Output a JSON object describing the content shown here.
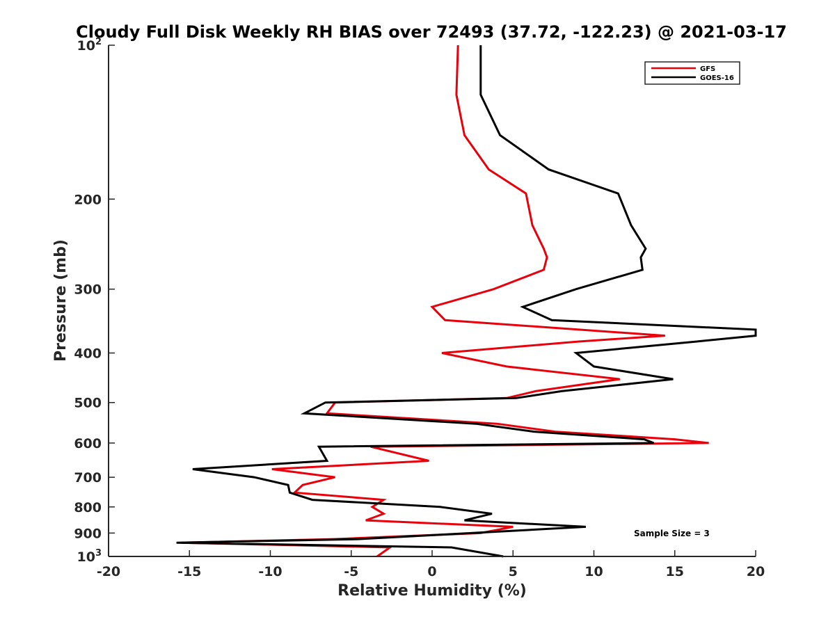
{
  "chart_data": {
    "type": "line",
    "title": "Cloudy Full Disk Weekly RH BIAS over 72493 (37.72, -122.23) @ 2021-03-17",
    "xlabel": "Relative Humidity (%)",
    "ylabel": "Pressure (mb)",
    "xlim": [
      -20,
      20
    ],
    "ylim": [
      100,
      1000
    ],
    "yscale": "log",
    "y_inverted": true,
    "grid": false,
    "legend_position": "top-right",
    "x_ticks": [
      "-20",
      "-15",
      "-10",
      "-5",
      "0",
      "5",
      "10",
      "15",
      "20"
    ],
    "y_ticks": [
      {
        "value": 100,
        "label": "10",
        "sup": "2"
      },
      {
        "value": 200,
        "label": "200"
      },
      {
        "value": 300,
        "label": "300"
      },
      {
        "value": 400,
        "label": "400"
      },
      {
        "value": 500,
        "label": "500"
      },
      {
        "value": 600,
        "label": "600"
      },
      {
        "value": 700,
        "label": "700"
      },
      {
        "value": 800,
        "label": "800"
      },
      {
        "value": 900,
        "label": "900"
      },
      {
        "value": 1000,
        "label": "10",
        "sup": "3"
      }
    ],
    "annotation": "Sample Size = 3",
    "series": [
      {
        "name": "GFS",
        "color": "#e8000b",
        "points": [
          [
            1.6,
            100
          ],
          [
            1.5,
            125
          ],
          [
            2.0,
            150
          ],
          [
            3.5,
            175
          ],
          [
            5.8,
            195
          ],
          [
            6.2,
            225
          ],
          [
            6.9,
            250
          ],
          [
            7.1,
            260
          ],
          [
            6.9,
            275
          ],
          [
            3.8,
            300
          ],
          [
            0.0,
            325
          ],
          [
            0.8,
            345
          ],
          [
            14.4,
            370
          ],
          [
            9.0,
            380
          ],
          [
            0.6,
            400
          ],
          [
            4.6,
            425
          ],
          [
            11.6,
            450
          ],
          [
            6.4,
            475
          ],
          [
            4.6,
            490
          ],
          [
            -6.0,
            500
          ],
          [
            -6.5,
            525
          ],
          [
            4.0,
            550
          ],
          [
            7.6,
            570
          ],
          [
            15.0,
            590
          ],
          [
            17.1,
            600
          ],
          [
            -3.8,
            610
          ],
          [
            -0.2,
            650
          ],
          [
            -9.9,
            675
          ],
          [
            -6.0,
            700
          ],
          [
            -8.0,
            725
          ],
          [
            -8.5,
            750
          ],
          [
            -3.0,
            775
          ],
          [
            -3.7,
            800
          ],
          [
            -3.0,
            825
          ],
          [
            -4.1,
            850
          ],
          [
            5.0,
            875
          ],
          [
            3.0,
            900
          ],
          [
            -6.1,
            925
          ],
          [
            -15.5,
            940
          ],
          [
            -2.6,
            960
          ],
          [
            -3.4,
            1000
          ]
        ]
      },
      {
        "name": "GOES-16",
        "color": "#000000",
        "points": [
          [
            3.0,
            100
          ],
          [
            3.0,
            125
          ],
          [
            4.2,
            150
          ],
          [
            7.2,
            175
          ],
          [
            11.5,
            195
          ],
          [
            12.3,
            225
          ],
          [
            13.2,
            250
          ],
          [
            12.9,
            260
          ],
          [
            13.0,
            275
          ],
          [
            8.9,
            300
          ],
          [
            5.6,
            325
          ],
          [
            7.4,
            345
          ],
          [
            20.0,
            360
          ],
          [
            20.0,
            370
          ],
          [
            16.3,
            380
          ],
          [
            8.9,
            400
          ],
          [
            10.0,
            425
          ],
          [
            14.9,
            450
          ],
          [
            8.0,
            475
          ],
          [
            5.2,
            490
          ],
          [
            -6.6,
            500
          ],
          [
            -7.9,
            525
          ],
          [
            2.7,
            550
          ],
          [
            6.3,
            570
          ],
          [
            13.1,
            590
          ],
          [
            13.7,
            600
          ],
          [
            -7.0,
            610
          ],
          [
            -6.5,
            650
          ],
          [
            -14.8,
            675
          ],
          [
            -11.0,
            700
          ],
          [
            -8.9,
            725
          ],
          [
            -8.8,
            750
          ],
          [
            -7.4,
            775
          ],
          [
            0.5,
            800
          ],
          [
            3.7,
            825
          ],
          [
            2.0,
            850
          ],
          [
            9.5,
            875
          ],
          [
            2.4,
            900
          ],
          [
            -4.6,
            925
          ],
          [
            -15.8,
            940
          ],
          [
            1.2,
            960
          ],
          [
            4.4,
            1000
          ]
        ]
      }
    ]
  }
}
